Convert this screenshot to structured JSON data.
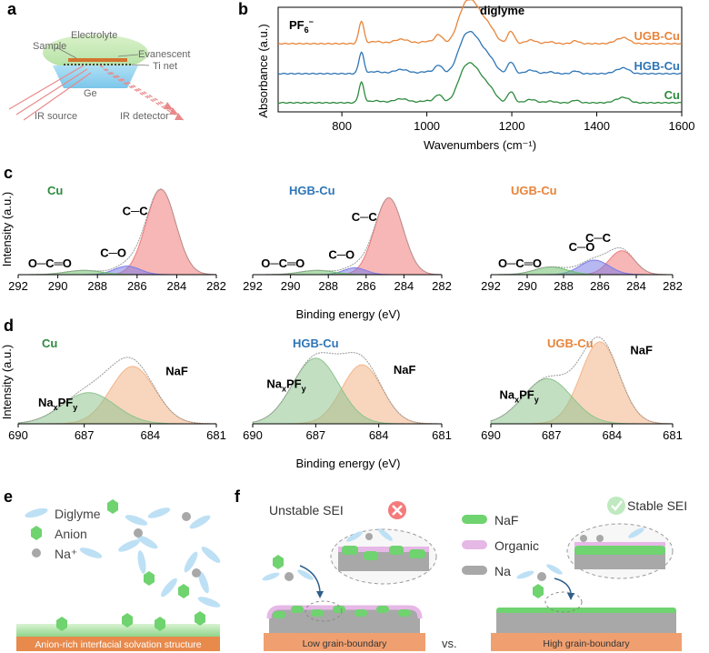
{
  "panel_labels": {
    "a": "a",
    "b": "b",
    "c": "c",
    "d": "d",
    "e": "e",
    "f": "f"
  },
  "panel_a": {
    "labels": {
      "electrolyte": "Electrolyte",
      "sample": "Sample",
      "evanescent": "Evanescent",
      "ti_net": "Ti net",
      "ge": "Ge",
      "ir_source": "IR source",
      "ir_detector": "IR detector"
    }
  },
  "chart_data": [
    {
      "id": "b",
      "type": "line",
      "xlabel": "Wavenumbers (cm⁻¹)",
      "ylabel": "Absorbance (a.u.)",
      "xlim": [
        650,
        1600
      ],
      "xticks": [
        800,
        1000,
        1200,
        1400,
        1600
      ],
      "annotations": {
        "pf6_base": "PF",
        "pf6_sub": "6",
        "pf6_sup": "−",
        "diglyme": "diglyme"
      },
      "series": [
        {
          "name": "UGB-Cu",
          "color": "#e8843a"
        },
        {
          "name": "HGB-Cu",
          "color": "#2e75b6"
        },
        {
          "name": "Cu",
          "color": "#2e8b3e"
        }
      ],
      "peaks": [
        {
          "x": 846,
          "h": 0.62,
          "w": 6
        },
        {
          "x": 880,
          "h": 0.06,
          "w": 14
        },
        {
          "x": 940,
          "h": 0.12,
          "w": 18
        },
        {
          "x": 1000,
          "h": 0.06,
          "w": 14
        },
        {
          "x": 1028,
          "h": 0.24,
          "w": 9
        },
        {
          "x": 1085,
          "h": 0.55,
          "w": 16
        },
        {
          "x": 1112,
          "h": 1.0,
          "w": 22
        },
        {
          "x": 1150,
          "h": 0.28,
          "w": 14
        },
        {
          "x": 1198,
          "h": 0.34,
          "w": 8
        },
        {
          "x": 1245,
          "h": 0.1,
          "w": 12
        },
        {
          "x": 1290,
          "h": 0.05,
          "w": 10
        },
        {
          "x": 1350,
          "h": 0.08,
          "w": 8
        },
        {
          "x": 1455,
          "h": 0.12,
          "w": 14
        },
        {
          "x": 1470,
          "h": 0.08,
          "w": 10
        }
      ]
    },
    {
      "id": "c",
      "type": "area",
      "xlabel": "Binding energy (eV)",
      "ylabel": "Intensity (a.u.)",
      "xlim": [
        292,
        282
      ],
      "xticks": [
        292,
        290,
        288,
        286,
        284,
        282
      ],
      "subplots": [
        {
          "title": "Cu",
          "title_color": "#2e8b3e",
          "labels": {
            "oco": "O─C═O",
            "co": "C─O",
            "cc": "C─C"
          },
          "components": [
            {
              "name": "C─C",
              "center": 284.8,
              "amp": 1.0,
              "width": 0.75,
              "color": "#f07b7b"
            },
            {
              "name": "C─O",
              "center": 286.5,
              "amp": 0.1,
              "width": 0.65,
              "color": "#7b7be8"
            },
            {
              "name": "O─C═O",
              "center": 288.7,
              "amp": 0.05,
              "width": 0.9,
              "color": "#6fbf6f"
            }
          ]
        },
        {
          "title": "HGB-Cu",
          "title_color": "#2e75b6",
          "labels": {
            "oco": "O─C═O",
            "co": "C─O",
            "cc": "C─C"
          },
          "components": [
            {
              "name": "C─C",
              "center": 284.8,
              "amp": 0.9,
              "width": 0.75,
              "color": "#f07b7b"
            },
            {
              "name": "C─O",
              "center": 286.6,
              "amp": 0.08,
              "width": 0.6,
              "color": "#7b7be8"
            },
            {
              "name": "O─C═O",
              "center": 288.6,
              "amp": 0.05,
              "width": 0.9,
              "color": "#6fbf6f"
            }
          ]
        },
        {
          "title": "UGB-Cu",
          "title_color": "#e8843a",
          "labels": {
            "oco": "O─C═O",
            "co": "C─O",
            "cc": "C─C"
          },
          "components": [
            {
              "name": "C─C",
              "center": 284.8,
              "amp": 0.28,
              "width": 0.7,
              "color": "#f07b7b"
            },
            {
              "name": "C─O",
              "center": 286.3,
              "amp": 0.17,
              "width": 0.8,
              "color": "#7b7be8"
            },
            {
              "name": "O─C═O",
              "center": 288.7,
              "amp": 0.09,
              "width": 0.9,
              "color": "#6fbf6f"
            }
          ]
        }
      ]
    },
    {
      "id": "d",
      "type": "area",
      "xlabel": "Binding energy (eV)",
      "ylabel": "Intensity (a.u.)",
      "xlim": [
        690,
        681
      ],
      "xticks": [
        690,
        687,
        684,
        681
      ],
      "subplots": [
        {
          "title": "Cu",
          "title_color": "#2e8b3e",
          "labels": {
            "naxpfy_base": "Na",
            "x": "x",
            "pf": "PF",
            "y": "y",
            "naf": "NaF"
          },
          "components": [
            {
              "name": "NaF",
              "center": 684.8,
              "amp": 0.7,
              "width": 1.0,
              "color": "#f2b488"
            },
            {
              "name": "NaxPFy",
              "center": 686.8,
              "amp": 0.38,
              "width": 1.2,
              "color": "#8fc48f"
            }
          ]
        },
        {
          "title": "HGB-Cu",
          "title_color": "#2e75b6",
          "labels": {
            "naxpfy_base": "Na",
            "x": "x",
            "pf": "PF",
            "y": "y",
            "naf": "NaF"
          },
          "components": [
            {
              "name": "NaF",
              "center": 684.8,
              "amp": 0.72,
              "width": 0.95,
              "color": "#f2b488"
            },
            {
              "name": "NaxPFy",
              "center": 687.0,
              "amp": 0.8,
              "width": 1.1,
              "color": "#8fc48f"
            }
          ]
        },
        {
          "title": "UGB-Cu",
          "title_color": "#e8843a",
          "labels": {
            "naxpfy_base": "Na",
            "x": "x",
            "pf": "PF",
            "y": "y",
            "naf": "NaF"
          },
          "components": [
            {
              "name": "NaF",
              "center": 684.6,
              "amp": 1.0,
              "width": 0.95,
              "color": "#f2b488"
            },
            {
              "name": "NaxPFy",
              "center": 687.2,
              "amp": 0.55,
              "width": 1.2,
              "color": "#8fc48f"
            }
          ]
        }
      ]
    }
  ],
  "panel_e": {
    "legend": {
      "diglyme": "Diglyme",
      "anion": "Anion",
      "na": "Na⁺"
    },
    "caption": "Anion-rich interfacial solvation structure"
  },
  "panel_f": {
    "unstable": "Unstable SEI",
    "stable": "Stable SEI",
    "legend": {
      "naf": "NaF",
      "organic": "Organic",
      "na": "Na"
    },
    "low": "Low grain-boundary",
    "high": "High grain-boundary",
    "vs": "vs."
  },
  "colors": {
    "cu": "#2e8b3e",
    "hgb": "#2e75b6",
    "ugb": "#e8843a",
    "naf_green": "#6fd36f",
    "organic": "#e6b8e6",
    "na_gray": "#a8a8a8",
    "substrate": "#f0a070"
  }
}
